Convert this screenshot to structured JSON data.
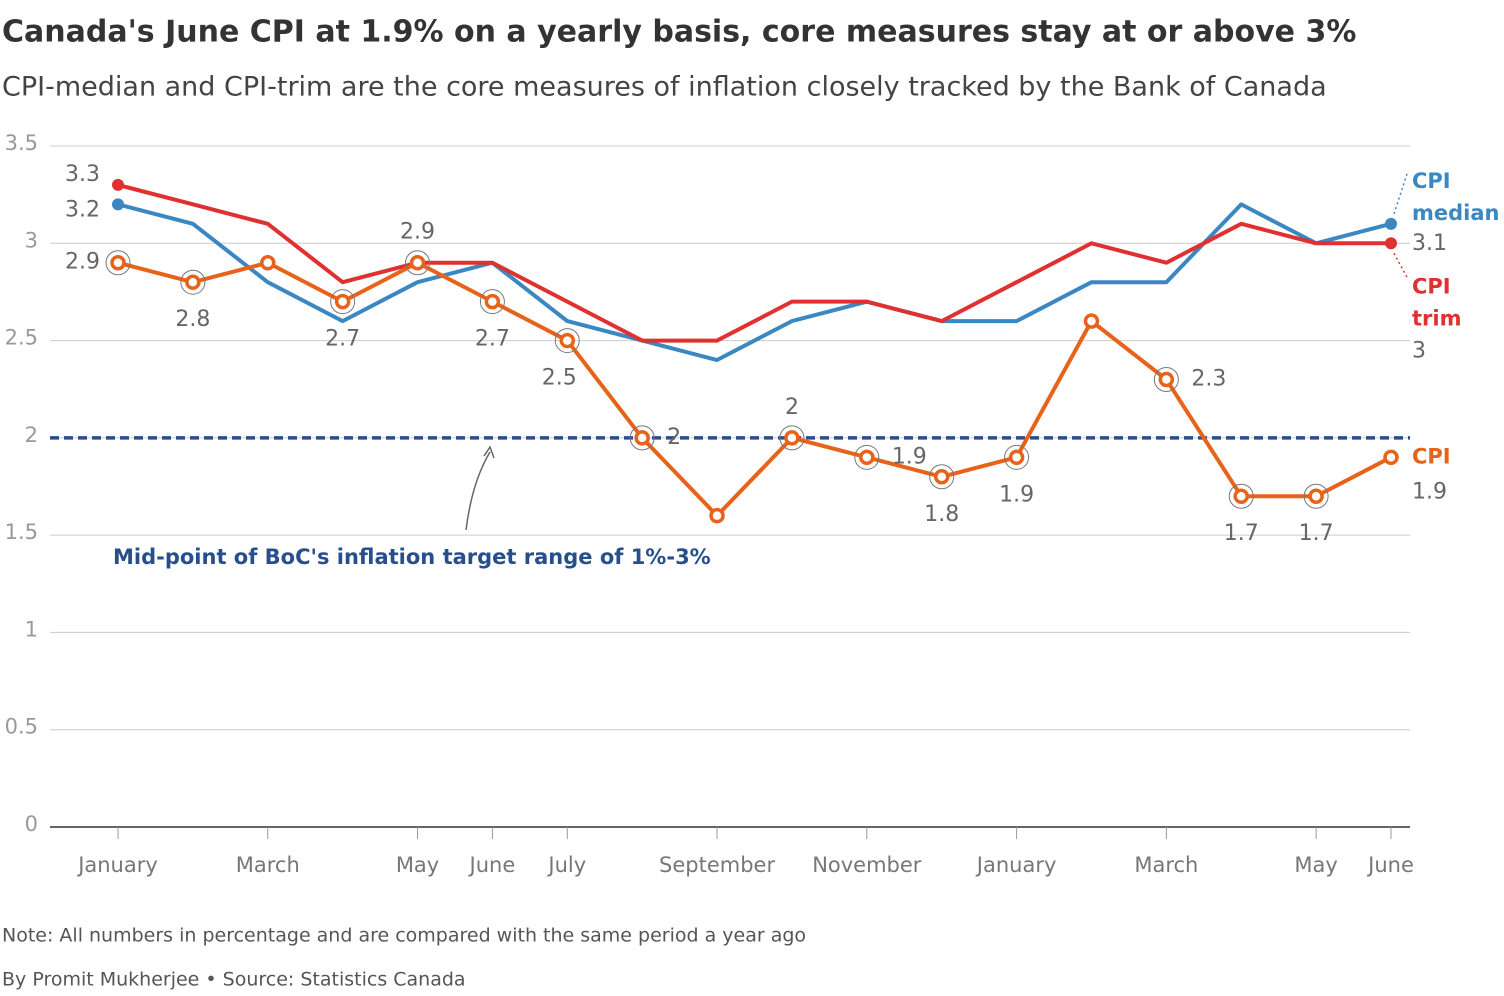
{
  "chart_data": {
    "type": "line",
    "title": "Canada's June CPI at 1.9% on a yearly basis, core measures stay at or above 3%",
    "subtitle": "CPI-median and CPI-trim are the core measures of inflation closely tracked by the Bank of Canada",
    "categories": [
      "January",
      null,
      "March",
      null,
      "May",
      "June",
      "July",
      null,
      "September",
      null,
      "November",
      null,
      "January",
      null,
      "March",
      null,
      "May",
      "June"
    ],
    "series": [
      {
        "name": "CPI median",
        "color": "#3a87c2",
        "values": [
          3.2,
          3.1,
          2.8,
          2.6,
          2.8,
          2.9,
          2.6,
          2.5,
          2.4,
          2.6,
          2.7,
          2.6,
          2.6,
          2.8,
          2.8,
          3.2,
          3.0,
          3.1
        ],
        "value_labels": [
          "3.2",
          null,
          null,
          null,
          null,
          null,
          null,
          null,
          null,
          null,
          null,
          null,
          null,
          null,
          null,
          null,
          null,
          "3.1"
        ]
      },
      {
        "name": "CPI trim",
        "color": "#e03030",
        "values": [
          3.3,
          3.2,
          3.1,
          2.8,
          2.9,
          2.9,
          2.7,
          2.5,
          2.5,
          2.7,
          2.7,
          2.6,
          2.8,
          3.0,
          2.9,
          3.1,
          3.0,
          3.0
        ],
        "value_labels": [
          "3.3",
          null,
          null,
          null,
          null,
          null,
          null,
          null,
          null,
          null,
          null,
          null,
          null,
          null,
          null,
          null,
          null,
          "3"
        ]
      },
      {
        "name": "CPI",
        "color": "#e8631a",
        "values": [
          2.9,
          2.8,
          2.9,
          2.7,
          2.9,
          2.7,
          2.5,
          2.0,
          1.6,
          2.0,
          1.9,
          1.8,
          1.9,
          2.6,
          2.3,
          1.7,
          1.7,
          1.9
        ],
        "value_labels": [
          "2.9",
          "2.8",
          null,
          "2.7",
          "2.9",
          "2.7",
          "2.5",
          "2",
          null,
          "2",
          "1.9",
          "1.8",
          "1.9",
          null,
          "2.3",
          "1.7",
          "1.7",
          "1.9"
        ]
      }
    ],
    "reference": {
      "value": 2,
      "label": "Mid-point of BoC's inflation target range of 1%-3%",
      "color": "#274f8c"
    },
    "ylim": [
      0,
      3.5
    ],
    "yticks": [
      0,
      0.5,
      1,
      1.5,
      2,
      2.5,
      3,
      3.5
    ],
    "grid": true,
    "note": "Note: All numbers in percentage and are compared with the same period a year ago",
    "source": "By Promit Mukherjee • Source: Statistics Canada"
  }
}
